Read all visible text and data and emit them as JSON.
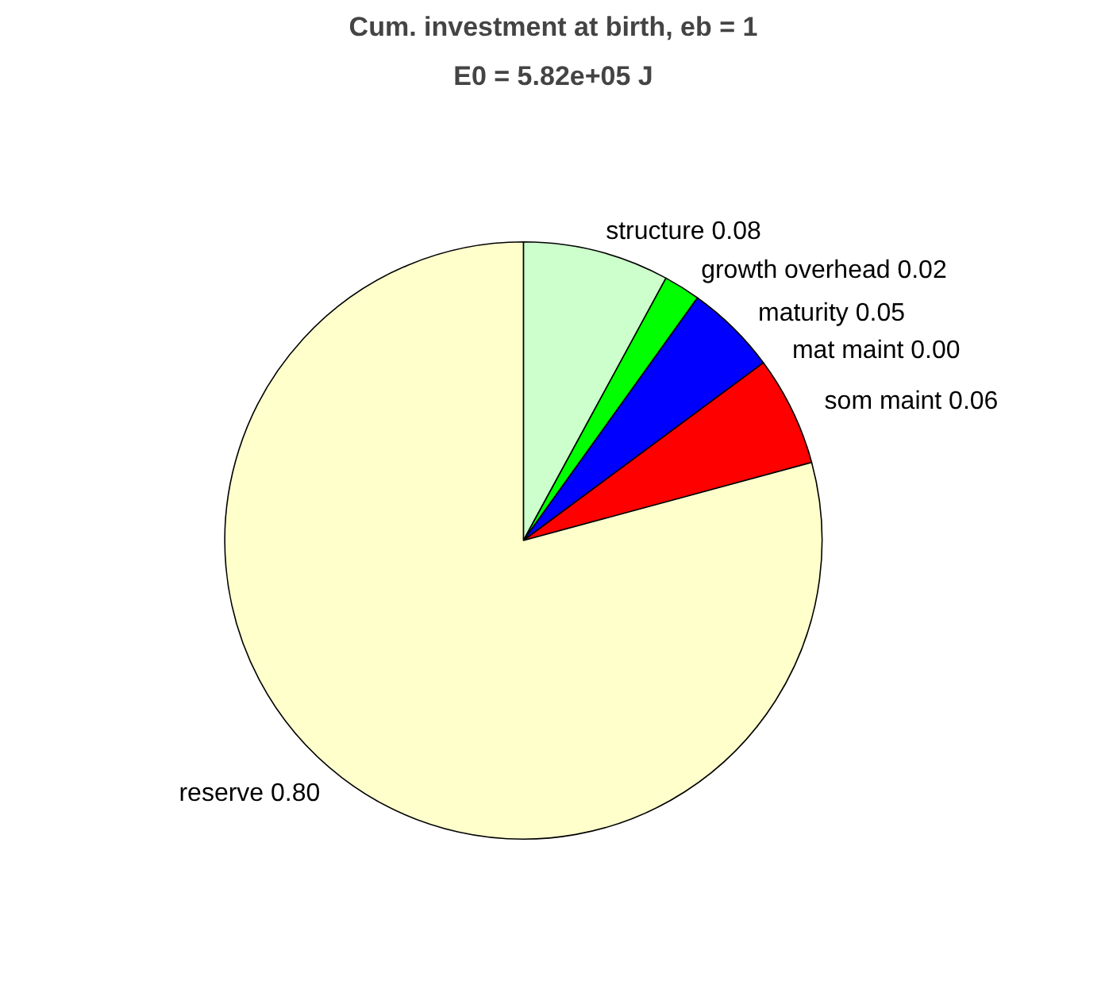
{
  "chart_data": {
    "type": "pie",
    "title": "Cum. investment at birth, eb = 1",
    "subtitle": "E0 = 5.82e+05 J",
    "categories": [
      "structure",
      "growth overhead",
      "maturity",
      "mat maint",
      "som maint",
      "reserve"
    ],
    "values": [
      0.08,
      0.02,
      0.05,
      0.0,
      0.06,
      0.8
    ],
    "value_labels": [
      "0.08",
      "0.02",
      "0.05",
      "0.00",
      "0.06",
      "0.80"
    ],
    "colors": [
      "#ccffcc",
      "#00ff00",
      "#0000ff",
      "#ff00ff",
      "#ff0000",
      "#ffffcc"
    ],
    "legend": false
  }
}
